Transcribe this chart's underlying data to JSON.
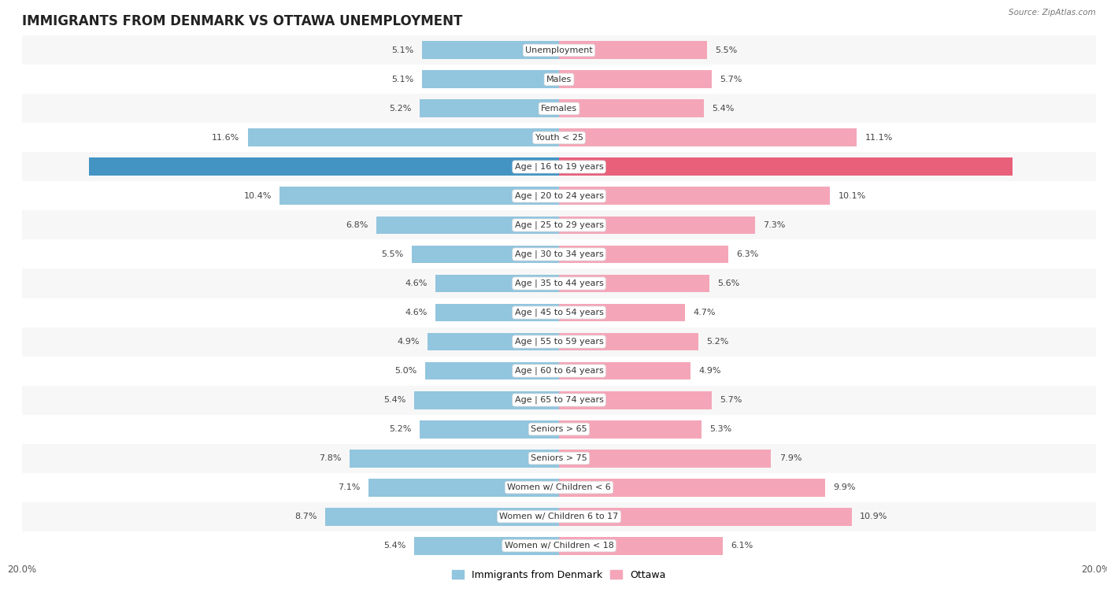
{
  "title": "IMMIGRANTS FROM DENMARK VS OTTAWA UNEMPLOYMENT",
  "source": "Source: ZipAtlas.com",
  "categories": [
    "Unemployment",
    "Males",
    "Females",
    "Youth < 25",
    "Age | 16 to 19 years",
    "Age | 20 to 24 years",
    "Age | 25 to 29 years",
    "Age | 30 to 34 years",
    "Age | 35 to 44 years",
    "Age | 45 to 54 years",
    "Age | 55 to 59 years",
    "Age | 60 to 64 years",
    "Age | 65 to 74 years",
    "Seniors > 65",
    "Seniors > 75",
    "Women w/ Children < 6",
    "Women w/ Children 6 to 17",
    "Women w/ Children < 18"
  ],
  "denmark_values": [
    5.1,
    5.1,
    5.2,
    11.6,
    17.5,
    10.4,
    6.8,
    5.5,
    4.6,
    4.6,
    4.9,
    5.0,
    5.4,
    5.2,
    7.8,
    7.1,
    8.7,
    5.4
  ],
  "ottawa_values": [
    5.5,
    5.7,
    5.4,
    11.1,
    16.9,
    10.1,
    7.3,
    6.3,
    5.6,
    4.7,
    5.2,
    4.9,
    5.7,
    5.3,
    7.9,
    9.9,
    10.9,
    6.1
  ],
  "denmark_color": "#92c5de",
  "ottawa_color": "#f4a6b8",
  "highlight_denmark_color": "#4393c3",
  "highlight_ottawa_color": "#e8607a",
  "highlight_row": 4,
  "xlim": 20.0,
  "bar_height": 0.62,
  "row_colors_even": "#f7f7f7",
  "row_colors_odd": "#ffffff",
  "legend_denmark": "Immigrants from Denmark",
  "legend_ottawa": "Ottawa",
  "title_fontsize": 12,
  "label_fontsize": 8,
  "category_fontsize": 8,
  "axis_fontsize": 8.5
}
